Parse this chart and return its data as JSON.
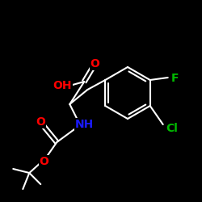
{
  "bg_color": "#000000",
  "bond_color": "#ffffff",
  "bond_lw": 1.5,
  "atom_colors": {
    "O": "#ff0000",
    "N": "#1a1aff",
    "F": "#00bb00",
    "Cl": "#00bb00",
    "C": "#ffffff",
    "H": "#ffffff"
  },
  "font_size": 9,
  "dpi": 100,
  "fig_w": 2.5,
  "fig_h": 2.5
}
